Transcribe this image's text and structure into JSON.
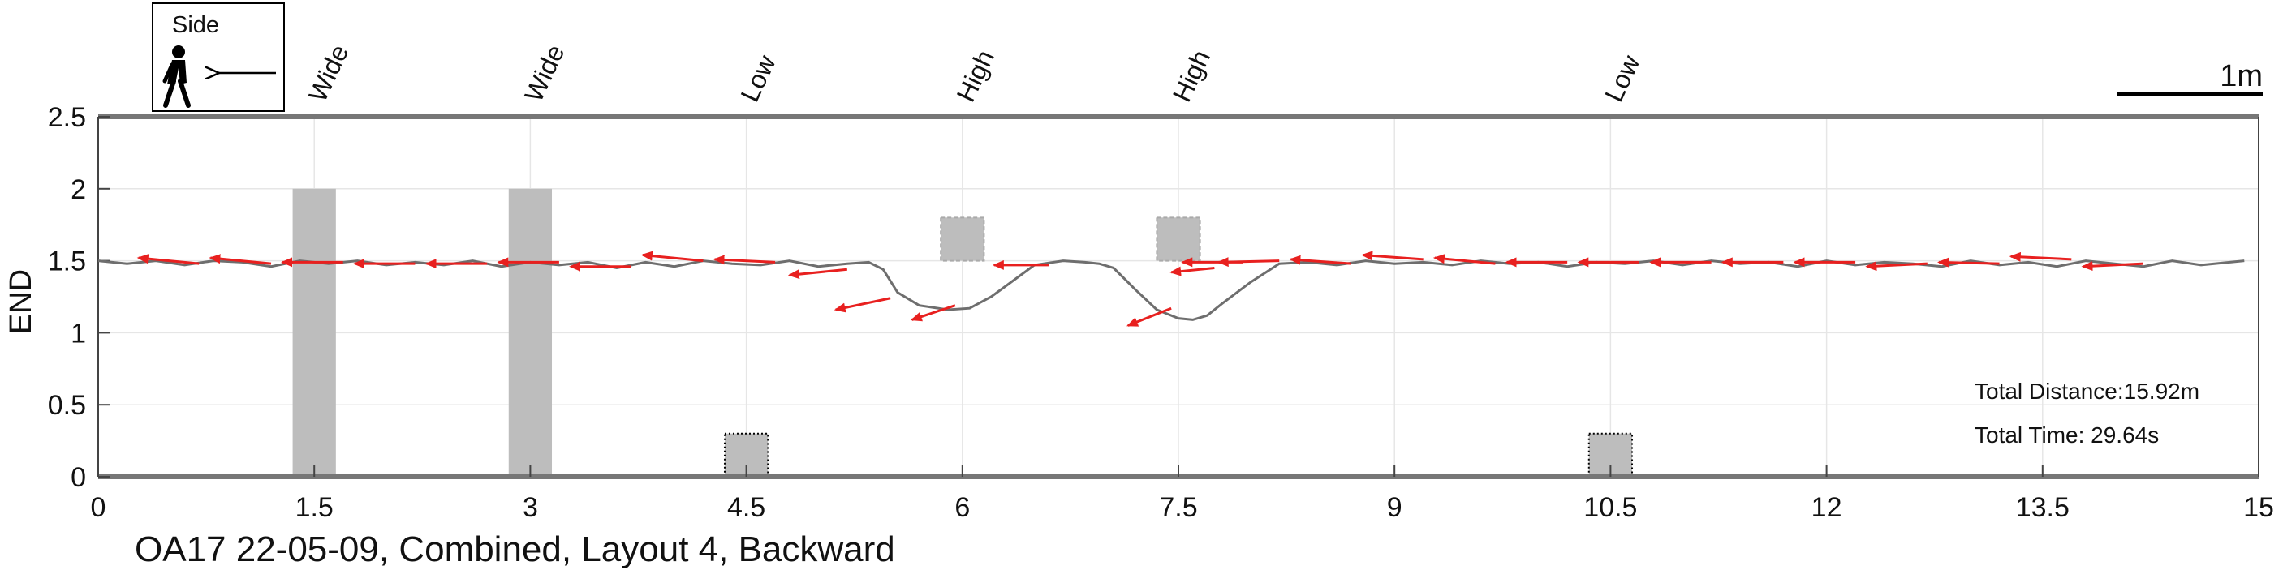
{
  "chart_data": {
    "type": "line",
    "caption": "OA17 22-05-09, Combined, Layout 4, Backward",
    "ylabel": "END",
    "xlim": [
      0,
      15
    ],
    "ylim": [
      0,
      2.5
    ],
    "x_ticks": [
      "0",
      "1.5",
      "3",
      "4.5",
      "6",
      "7.5",
      "9",
      "10.5",
      "12",
      "13.5",
      "15"
    ],
    "x_tick_values": [
      0,
      1.5,
      3,
      4.5,
      6,
      7.5,
      9,
      10.5,
      12,
      13.5,
      15
    ],
    "y_ticks": [
      "0",
      "0.5",
      "1",
      "1.5",
      "2",
      "2.5"
    ],
    "y_tick_values": [
      0,
      0.5,
      1,
      1.5,
      2,
      2.5
    ],
    "grid": true,
    "legend": {
      "title": "Side",
      "placement": "top-left"
    },
    "scale_bar": {
      "label": "1m",
      "length": 1
    },
    "annotations": {
      "distance": "Total Distance:15.92m",
      "time": "Total Time: 29.64s"
    },
    "obstacles": [
      {
        "label": "Wide",
        "x": 1.5,
        "width": 0.3,
        "ybottom": 0,
        "ytop": 2,
        "style": "solid"
      },
      {
        "label": "Wide",
        "x": 3.0,
        "width": 0.3,
        "ybottom": 0,
        "ytop": 2,
        "style": "solid"
      },
      {
        "label": "Low",
        "x": 4.5,
        "width": 0.3,
        "ybottom": 0,
        "ytop": 0.3,
        "style": "dotted"
      },
      {
        "label": "High",
        "x": 6.0,
        "width": 0.3,
        "ybottom": 1.5,
        "ytop": 1.8,
        "style": "dashed"
      },
      {
        "label": "High",
        "x": 7.5,
        "width": 0.3,
        "ybottom": 1.5,
        "ytop": 1.8,
        "style": "dashed"
      },
      {
        "label": "Low",
        "x": 10.5,
        "width": 0.3,
        "ybottom": 0,
        "ytop": 0.3,
        "style": "dotted"
      }
    ],
    "colors": {
      "path": "#6e6e6e",
      "arrow": "#e8201f",
      "obstacle": "#bdbdbd",
      "axis": "#777777"
    },
    "path": {
      "x": [
        0,
        0.2,
        0.4,
        0.6,
        0.8,
        1.0,
        1.2,
        1.4,
        1.6,
        1.8,
        2.0,
        2.2,
        2.4,
        2.6,
        2.8,
        3.0,
        3.2,
        3.4,
        3.6,
        3.8,
        4.0,
        4.2,
        4.4,
        4.6,
        4.8,
        5.0,
        5.2,
        5.35,
        5.45,
        5.55,
        5.7,
        5.9,
        6.05,
        6.2,
        6.35,
        6.5,
        6.7,
        6.85,
        6.95,
        7.05,
        7.2,
        7.35,
        7.5,
        7.6,
        7.7,
        7.8,
        8.0,
        8.2,
        8.4,
        8.6,
        8.8,
        9.0,
        9.2,
        9.4,
        9.6,
        9.8,
        10.0,
        10.2,
        10.4,
        10.6,
        10.8,
        11.0,
        11.2,
        11.4,
        11.6,
        11.8,
        12.0,
        12.2,
        12.4,
        12.6,
        12.8,
        13.0,
        13.2,
        13.4,
        13.6,
        13.8,
        14.0,
        14.2,
        14.4,
        14.6,
        14.8,
        14.9
      ],
      "y": [
        1.5,
        1.48,
        1.5,
        1.47,
        1.5,
        1.49,
        1.46,
        1.5,
        1.48,
        1.5,
        1.47,
        1.49,
        1.47,
        1.5,
        1.46,
        1.49,
        1.47,
        1.49,
        1.45,
        1.49,
        1.46,
        1.5,
        1.48,
        1.47,
        1.5,
        1.46,
        1.48,
        1.49,
        1.44,
        1.28,
        1.19,
        1.16,
        1.17,
        1.25,
        1.36,
        1.47,
        1.5,
        1.49,
        1.48,
        1.45,
        1.3,
        1.16,
        1.1,
        1.09,
        1.12,
        1.2,
        1.35,
        1.48,
        1.49,
        1.47,
        1.5,
        1.48,
        1.49,
        1.47,
        1.5,
        1.48,
        1.49,
        1.46,
        1.49,
        1.48,
        1.5,
        1.47,
        1.5,
        1.48,
        1.49,
        1.46,
        1.5,
        1.47,
        1.49,
        1.48,
        1.46,
        1.5,
        1.47,
        1.49,
        1.46,
        1.5,
        1.48,
        1.46,
        1.5,
        1.47,
        1.49,
        1.5
      ]
    },
    "arrows": [
      {
        "x": 14.2,
        "y": 1.48,
        "dx": -0.42,
        "dy": -0.02
      },
      {
        "x": 13.7,
        "y": 1.51,
        "dx": -0.42,
        "dy": 0.02
      },
      {
        "x": 13.2,
        "y": 1.48,
        "dx": -0.42,
        "dy": 0.01
      },
      {
        "x": 12.7,
        "y": 1.48,
        "dx": -0.42,
        "dy": -0.02
      },
      {
        "x": 12.2,
        "y": 1.49,
        "dx": -0.42,
        "dy": 0.0
      },
      {
        "x": 11.7,
        "y": 1.49,
        "dx": -0.42,
        "dy": 0.0
      },
      {
        "x": 11.2,
        "y": 1.49,
        "dx": -0.42,
        "dy": 0.0
      },
      {
        "x": 10.7,
        "y": 1.49,
        "dx": -0.42,
        "dy": 0.0
      },
      {
        "x": 10.2,
        "y": 1.49,
        "dx": -0.42,
        "dy": 0.0
      },
      {
        "x": 9.7,
        "y": 1.48,
        "dx": -0.42,
        "dy": 0.04
      },
      {
        "x": 9.2,
        "y": 1.51,
        "dx": -0.42,
        "dy": 0.03
      },
      {
        "x": 8.7,
        "y": 1.48,
        "dx": -0.42,
        "dy": 0.03
      },
      {
        "x": 8.2,
        "y": 1.5,
        "dx": -0.42,
        "dy": -0.01
      },
      {
        "x": 7.95,
        "y": 1.49,
        "dx": -0.42,
        "dy": 0.0
      },
      {
        "x": 7.75,
        "y": 1.45,
        "dx": -0.3,
        "dy": -0.03
      },
      {
        "x": 7.45,
        "y": 1.17,
        "dx": -0.3,
        "dy": -0.12
      },
      {
        "x": 6.6,
        "y": 1.47,
        "dx": -0.38,
        "dy": 0.0
      },
      {
        "x": 5.95,
        "y": 1.19,
        "dx": -0.3,
        "dy": -0.1
      },
      {
        "x": 5.5,
        "y": 1.24,
        "dx": -0.38,
        "dy": -0.08
      },
      {
        "x": 5.2,
        "y": 1.44,
        "dx": -0.4,
        "dy": -0.04
      },
      {
        "x": 4.7,
        "y": 1.49,
        "dx": -0.42,
        "dy": 0.02
      },
      {
        "x": 4.2,
        "y": 1.5,
        "dx": -0.42,
        "dy": 0.04
      },
      {
        "x": 3.7,
        "y": 1.46,
        "dx": -0.42,
        "dy": 0.0
      },
      {
        "x": 3.2,
        "y": 1.49,
        "dx": -0.42,
        "dy": 0.0
      },
      {
        "x": 2.7,
        "y": 1.48,
        "dx": -0.42,
        "dy": 0.0
      },
      {
        "x": 2.2,
        "y": 1.48,
        "dx": -0.42,
        "dy": 0.0
      },
      {
        "x": 1.7,
        "y": 1.49,
        "dx": -0.42,
        "dy": 0.0
      },
      {
        "x": 1.2,
        "y": 1.48,
        "dx": -0.42,
        "dy": 0.04
      },
      {
        "x": 0.7,
        "y": 1.48,
        "dx": -0.42,
        "dy": 0.04
      }
    ]
  }
}
